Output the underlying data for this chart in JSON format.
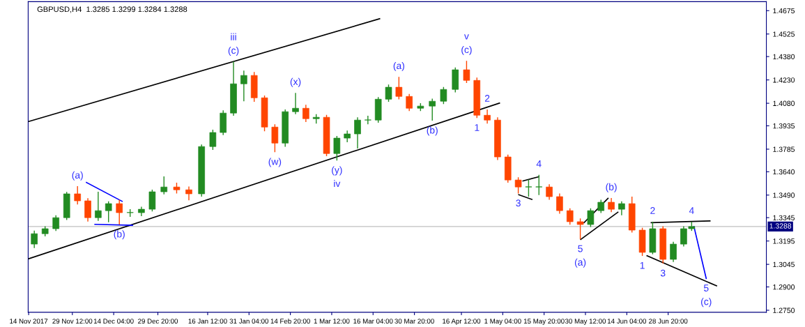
{
  "chart_data": {
    "type": "candlestick",
    "title": "GBPUSD,H4  1.3285 1.3299 1.3284 1.3288",
    "x": [
      "2017-11-16T00:00",
      "2017-11-19T20:00",
      "2017-11-23T16:00",
      "2017-11-27T12:00",
      "2017-12-01T08:00",
      "2017-12-05T00:00",
      "2017-12-08T16:00",
      "2017-12-12T08:00",
      "2017-12-16T04:00",
      "2017-12-20T00:00",
      "2017-12-24T00:00",
      "2017-12-27T20:00",
      "2018-01-01T00:00",
      "2018-01-05T12:00",
      "2018-01-09T20:00",
      "2018-01-14T08:00",
      "2018-01-18T08:00",
      "2018-01-22T00:00",
      "2018-01-25T16:00",
      "2018-01-29T08:00",
      "2018-02-02T00:00",
      "2018-02-05T16:00",
      "2018-02-09T08:00",
      "2018-02-13T00:00",
      "2018-02-16T16:00",
      "2018-02-20T08:00",
      "2018-02-24T00:00",
      "2018-02-27T16:00",
      "2018-03-03T08:00",
      "2018-03-07T00:00",
      "2018-03-10T16:00",
      "2018-03-14T08:00",
      "2018-03-18T00:00",
      "2018-03-21T16:00",
      "2018-03-25T08:00",
      "2018-03-29T00:00",
      "2018-04-02T00:00",
      "2018-04-06T04:00",
      "2018-04-10T04:00",
      "2018-04-14T08:00",
      "2018-04-18T08:00",
      "2018-04-22T00:00",
      "2018-04-25T16:00",
      "2018-04-29T08:00",
      "2018-05-03T00:00",
      "2018-05-06T16:00",
      "2018-05-10T08:00",
      "2018-05-14T00:00",
      "2018-05-17T16:00",
      "2018-05-21T08:00",
      "2018-05-25T00:00",
      "2018-05-28T16:00",
      "2018-06-01T08:00",
      "2018-06-05T00:00",
      "2018-06-08T16:00",
      "2018-06-12T08:00",
      "2018-06-16T00:00",
      "2018-06-19T16:00",
      "2018-06-23T08:00",
      "2018-06-27T00:00",
      "2018-06-30T16:00",
      "2018-07-04T08:00",
      "2018-07-07T04:00"
    ],
    "ohlc": [
      [
        1.3175,
        1.3262,
        1.315,
        1.3242
      ],
      [
        1.3242,
        1.329,
        1.3225,
        1.3274
      ],
      [
        1.3274,
        1.336,
        1.326,
        1.3345
      ],
      [
        1.3345,
        1.351,
        1.333,
        1.3498
      ],
      [
        1.3498,
        1.3547,
        1.343,
        1.3453
      ],
      [
        1.3453,
        1.347,
        1.332,
        1.3345
      ],
      [
        1.3345,
        1.3511,
        1.3325,
        1.339
      ],
      [
        1.339,
        1.345,
        1.3315,
        1.3435
      ],
      [
        1.3435,
        1.346,
        1.3301,
        1.3377
      ],
      [
        1.3377,
        1.34,
        1.335,
        1.3377
      ],
      [
        1.3377,
        1.3415,
        1.3355,
        1.3399
      ],
      [
        1.3399,
        1.3525,
        1.3385,
        1.3511
      ],
      [
        1.3511,
        1.361,
        1.3495,
        1.3542
      ],
      [
        1.3542,
        1.357,
        1.35,
        1.3524
      ],
      [
        1.3524,
        1.3545,
        1.3457,
        1.3498
      ],
      [
        1.3498,
        1.3815,
        1.348,
        1.3802
      ],
      [
        1.3802,
        1.391,
        1.378,
        1.3892
      ],
      [
        1.3892,
        1.4035,
        1.3875,
        1.4017
      ],
      [
        1.4017,
        1.4348,
        1.4,
        1.4205
      ],
      [
        1.4205,
        1.429,
        1.4093,
        1.4259
      ],
      [
        1.4259,
        1.4281,
        1.409,
        1.4115
      ],
      [
        1.4115,
        1.413,
        1.39,
        1.3927
      ],
      [
        1.3927,
        1.3945,
        1.3766,
        1.3824
      ],
      [
        1.3824,
        1.404,
        1.38,
        1.4026
      ],
      [
        1.4026,
        1.4147,
        1.401,
        1.4048
      ],
      [
        1.4048,
        1.407,
        1.396,
        1.3981
      ],
      [
        1.3981,
        1.401,
        1.395,
        1.399
      ],
      [
        1.399,
        1.4005,
        1.374,
        1.3757
      ],
      [
        1.3757,
        1.387,
        1.3712,
        1.3856
      ],
      [
        1.3856,
        1.3905,
        1.383,
        1.3883
      ],
      [
        1.3883,
        1.399,
        1.3789,
        1.3972
      ],
      [
        1.3972,
        1.4,
        1.3945,
        1.3972
      ],
      [
        1.3972,
        1.412,
        1.3955,
        1.4106
      ],
      [
        1.4106,
        1.42,
        1.409,
        1.4183
      ],
      [
        1.4183,
        1.425,
        1.4105,
        1.4124
      ],
      [
        1.4124,
        1.414,
        1.403,
        1.4048
      ],
      [
        1.4048,
        1.408,
        1.403,
        1.4062
      ],
      [
        1.4062,
        1.411,
        1.3968,
        1.4093
      ],
      [
        1.4093,
        1.4185,
        1.4075,
        1.4169
      ],
      [
        1.4169,
        1.431,
        1.415,
        1.4295
      ],
      [
        1.4295,
        1.4353,
        1.421,
        1.4227
      ],
      [
        1.4227,
        1.4245,
        1.3985,
        1.4003
      ],
      [
        1.4003,
        1.404,
        1.395,
        1.3972
      ],
      [
        1.3972,
        1.399,
        1.3715,
        1.3735
      ],
      [
        1.3735,
        1.375,
        1.357,
        1.3587
      ],
      [
        1.3587,
        1.3605,
        1.35,
        1.3542
      ],
      [
        1.3542,
        1.359,
        1.348,
        1.3542
      ],
      [
        1.3542,
        1.362,
        1.349,
        1.3542
      ],
      [
        1.3542,
        1.356,
        1.346,
        1.348
      ],
      [
        1.348,
        1.35,
        1.337,
        1.339
      ],
      [
        1.339,
        1.3405,
        1.33,
        1.3319
      ],
      [
        1.3319,
        1.334,
        1.3207,
        1.3301
      ],
      [
        1.3301,
        1.3405,
        1.3285,
        1.339
      ],
      [
        1.339,
        1.346,
        1.3375,
        1.3444
      ],
      [
        1.3444,
        1.3471,
        1.338,
        1.3399
      ],
      [
        1.3399,
        1.345,
        1.336,
        1.3435
      ],
      [
        1.3435,
        1.348,
        1.325,
        1.3265
      ],
      [
        1.3265,
        1.328,
        1.3099,
        1.3122
      ],
      [
        1.3122,
        1.3319,
        1.311,
        1.3274
      ],
      [
        1.3274,
        1.329,
        1.305,
        1.3077
      ],
      [
        1.3077,
        1.319,
        1.306,
        1.3175
      ],
      [
        1.3175,
        1.329,
        1.316,
        1.3274
      ],
      [
        1.3274,
        1.3319,
        1.326,
        1.3288
      ]
    ],
    "colors": [
      "#228b22",
      "#228b22",
      "#228b22",
      "#228b22",
      "#ff4500",
      "#ff4500",
      "#228b22",
      "#228b22",
      "#ff4500",
      "#228b22",
      "#228b22",
      "#228b22",
      "#228b22",
      "#ff4500",
      "#ff4500",
      "#228b22",
      "#228b22",
      "#228b22",
      "#228b22",
      "#228b22",
      "#ff4500",
      "#ff4500",
      "#ff4500",
      "#228b22",
      "#228b22",
      "#ff4500",
      "#228b22",
      "#ff4500",
      "#228b22",
      "#228b22",
      "#228b22",
      "#228b22",
      "#228b22",
      "#228b22",
      "#ff4500",
      "#ff4500",
      "#228b22",
      "#228b22",
      "#228b22",
      "#228b22",
      "#ff4500",
      "#ff4500",
      "#ff4500",
      "#ff4500",
      "#ff4500",
      "#ff4500",
      "#228b22",
      "#228b22",
      "#ff4500",
      "#ff4500",
      "#ff4500",
      "#ff4500",
      "#228b22",
      "#228b22",
      "#ff4500",
      "#228b22",
      "#ff4500",
      "#ff4500",
      "#228b22",
      "#ff4500",
      "#228b22",
      "#228b22",
      "#228b22"
    ],
    "series": [
      {
        "type": "line",
        "x": [
          "2017-11-14T00:00",
          "2018-04-30T00:00"
        ],
        "values": [
          1.3081,
          1.4081
        ],
        "color": "#000000"
      },
      {
        "type": "line",
        "x": [
          "2017-11-14T00:00",
          "2018-03-18T12:00"
        ],
        "values": [
          1.3963,
          1.4623
        ],
        "color": "#000000"
      },
      {
        "type": "line",
        "x": [
          "2017-12-04T12:00",
          "2017-12-17T04:00"
        ],
        "values": [
          1.3571,
          1.345
        ],
        "color": "#0000ff"
      },
      {
        "type": "line",
        "x": [
          "2017-12-07T12:00",
          "2017-12-20T20:00"
        ],
        "values": [
          1.3302,
          1.3296
        ],
        "color": "#0000ff"
      },
      {
        "type": "line",
        "x": [
          "2018-05-08T08:00",
          "2018-05-14T00:00"
        ],
        "values": [
          1.3581,
          1.3608
        ],
        "color": "#000000"
      },
      {
        "type": "line",
        "x": [
          "2018-05-06T20:00",
          "2018-05-11T12:00"
        ],
        "values": [
          1.3492,
          1.3462
        ],
        "color": "#000000"
      },
      {
        "type": "line",
        "x": [
          "2018-05-30T00:00",
          "2018-06-07T12:00"
        ],
        "values": [
          1.3313,
          1.3469
        ],
        "color": "#000000"
      },
      {
        "type": "line",
        "x": [
          "2018-05-28T20:00",
          "2018-06-11T00:00"
        ],
        "values": [
          1.3205,
          1.338
        ],
        "color": "#000000"
      },
      {
        "type": "line",
        "x": [
          "2018-06-22T20:00",
          "2018-07-13T16:00"
        ],
        "values": [
          1.3313,
          1.3324
        ],
        "color": "#000000"
      },
      {
        "type": "line",
        "x": [
          "2018-06-21T08:00",
          "2018-07-16T00:00"
        ],
        "values": [
          1.31,
          1.2907
        ],
        "color": "#000000"
      },
      {
        "type": "line",
        "x": [
          "2018-07-08T00:00",
          "2018-07-12T08:00"
        ],
        "values": [
          1.3287,
          1.2954
        ],
        "color": "#0000ff"
      }
    ],
    "xlim": [
      "2017-11-13T20:00",
      "2018-08-02T16:00"
    ],
    "xticks": [
      {
        "value": "2017-11-14T00:00",
        "label": "14 Nov 2017"
      },
      {
        "value": "2017-11-29T12:00",
        "label": "29 Nov 12:00"
      },
      {
        "value": "2017-12-14T04:00",
        "label": "14 Dec 04:00"
      },
      {
        "value": "2017-12-29T20:00",
        "label": "29 Dec 20:00"
      },
      {
        "value": "2018-01-16T12:00",
        "label": "16 Jan 12:00"
      },
      {
        "value": "2018-01-31T04:00",
        "label": "31 Jan 04:00"
      },
      {
        "value": "2018-02-14T20:00",
        "label": "14 Feb 20:00"
      },
      {
        "value": "2018-03-01T12:00",
        "label": "1 Mar 12:00"
      },
      {
        "value": "2018-03-16T04:00",
        "label": "16 Mar 04:00"
      },
      {
        "value": "2018-03-30T20:00",
        "label": "30 Mar 20:00"
      },
      {
        "value": "2018-04-16T12:00",
        "label": "16 Apr 12:00"
      },
      {
        "value": "2018-05-01T04:00",
        "label": "1 May 04:00"
      },
      {
        "value": "2018-05-15T20:00",
        "label": "15 May 20:00"
      },
      {
        "value": "2018-05-30T12:00",
        "label": "30 May 12:00"
      },
      {
        "value": "2018-06-14T04:00",
        "label": "14 Jun 04:00"
      },
      {
        "value": "2018-06-28T20:00",
        "label": "28 Jun 20:00"
      }
    ],
    "ylim": [
      1.2737,
      1.4733
    ],
    "yticks": [
      {
        "value": 1.4675,
        "label": "1.4675"
      },
      {
        "value": 1.4525,
        "label": "1.4525"
      },
      {
        "value": 1.438,
        "label": "1.4380"
      },
      {
        "value": 1.423,
        "label": "1.4230"
      },
      {
        "value": 1.408,
        "label": "1.4080"
      },
      {
        "value": 1.3935,
        "label": "1.3935"
      },
      {
        "value": 1.3785,
        "label": "1.3785"
      },
      {
        "value": 1.364,
        "label": "1.3640"
      },
      {
        "value": 1.349,
        "label": "1.3490"
      },
      {
        "value": 1.3345,
        "label": "1.3345"
      },
      {
        "value": 1.3195,
        "label": "1.3195"
      },
      {
        "value": 1.3045,
        "label": "1.3045"
      },
      {
        "value": 1.29,
        "label": "1.2900"
      },
      {
        "value": 1.275,
        "label": "1.2750"
      }
    ],
    "ref_lines": [
      {
        "axis": "y",
        "value": 1.3288,
        "label": "1.3288",
        "color": "#c0c0c0"
      }
    ],
    "annotations": [
      {
        "text": "(a)",
        "x": "2017-12-01T08:00",
        "y": 1.3547
      },
      {
        "text": "(b)",
        "x": "2017-12-16T04:00",
        "y": 1.3301
      },
      {
        "text": "(c)",
        "x": "2018-01-25T16:00",
        "y": 1.4348
      },
      {
        "text": "iii",
        "x": "2018-01-25T16:00",
        "y": 1.4348
      },
      {
        "text": "(x)",
        "x": "2018-02-16T16:00",
        "y": 1.4147
      },
      {
        "text": "(w)",
        "x": "2018-02-09T08:00",
        "y": 1.3766
      },
      {
        "text": "(y)",
        "x": "2018-03-03T08:00",
        "y": 1.3712
      },
      {
        "text": "iv",
        "x": "2018-03-03T08:00",
        "y": 1.3712
      },
      {
        "text": "(a)",
        "x": "2018-03-25T08:00",
        "y": 1.425
      },
      {
        "text": "(b)",
        "x": "2018-04-06T04:00",
        "y": 1.3968
      },
      {
        "text": "(c)",
        "x": "2018-04-18T08:00",
        "y": 1.4353
      },
      {
        "text": "v",
        "x": "2018-04-18T08:00",
        "y": 1.4353
      },
      {
        "text": "1",
        "x": "2018-04-22T00:00",
        "y": 1.3985
      },
      {
        "text": "2",
        "x": "2018-04-25T16:00",
        "y": 1.404
      },
      {
        "text": "3",
        "x": "2018-05-06T16:00",
        "y": 1.35
      },
      {
        "text": "4",
        "x": "2018-05-14T00:00",
        "y": 1.362
      },
      {
        "text": "5",
        "x": "2018-05-28T16:00",
        "y": 1.3207
      },
      {
        "text": "(a)",
        "x": "2018-05-28T16:00",
        "y": 1.3207
      },
      {
        "text": "(b)",
        "x": "2018-06-08T16:00",
        "y": 1.3471
      },
      {
        "text": "1",
        "x": "2018-06-19T16:00",
        "y": 1.3099
      },
      {
        "text": "2",
        "x": "2018-06-23T08:00",
        "y": 1.3319
      },
      {
        "text": "3",
        "x": "2018-06-27T00:00",
        "y": 1.305
      },
      {
        "text": "4",
        "x": "2018-07-07T04:00",
        "y": 1.3319
      },
      {
        "text": "5",
        "x": "2018-07-12T08:00",
        "y": 1.2954
      },
      {
        "text": "(c)",
        "x": "2018-07-12T08:00",
        "y": 1.2954
      }
    ]
  }
}
